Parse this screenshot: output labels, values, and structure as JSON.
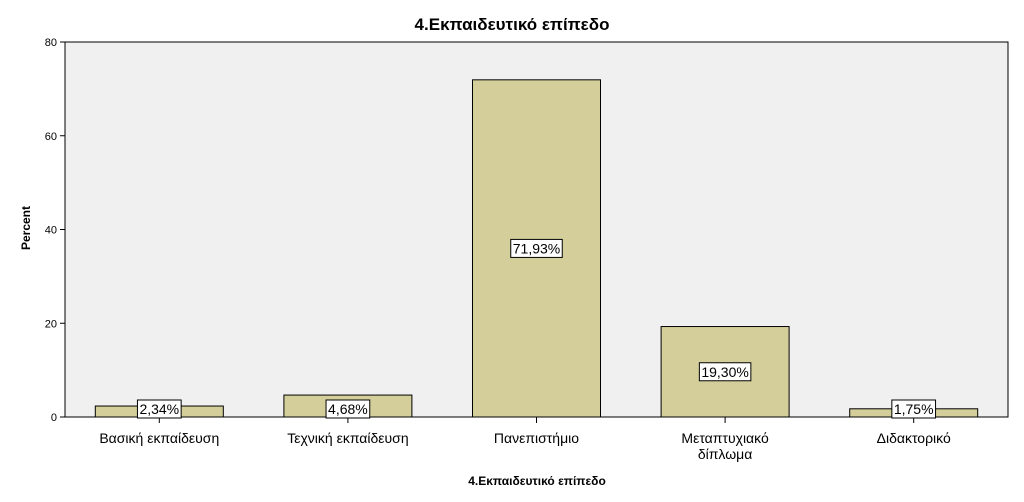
{
  "chart_data": {
    "type": "bar",
    "title": "4.Εκπαιδευτικό επίπεδο",
    "xlabel": "4.Εκπαιδευτικό επίπεδο",
    "ylabel": "Percent",
    "categories": [
      "Βασική εκπαίδευση",
      "Τεχνική εκπαίδευση",
      "Πανεπιστήμιο",
      "Μεταπτυχιακό δίπλωμα",
      "Διδακτορικό"
    ],
    "values": [
      2.34,
      4.68,
      71.93,
      19.3,
      1.75
    ],
    "data_labels": [
      "2,34%",
      "4,68%",
      "71,93%",
      "19,30%",
      "1,75%"
    ],
    "ylim": [
      0,
      80
    ],
    "yticks": [
      0,
      20,
      40,
      60,
      80
    ],
    "grid": false,
    "colors": {
      "bar_fill": "#d4cf9a",
      "bar_stroke": "#000000",
      "plot_bg": "#f0f0f0",
      "frame": "#000000"
    }
  }
}
